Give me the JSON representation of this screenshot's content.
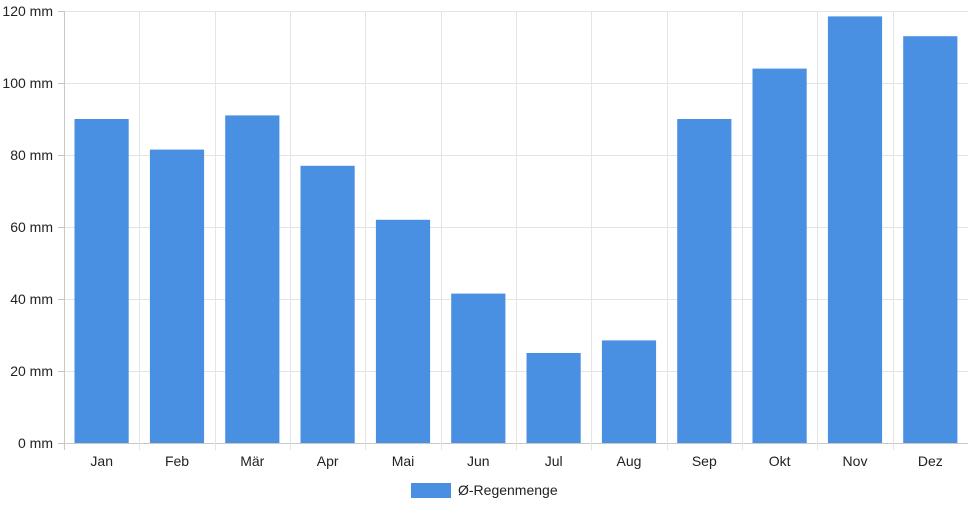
{
  "chart_data": {
    "type": "bar",
    "categories": [
      "Jan",
      "Feb",
      "Mär",
      "Apr",
      "Mai",
      "Jun",
      "Jul",
      "Aug",
      "Sep",
      "Okt",
      "Nov",
      "Dez"
    ],
    "series": [
      {
        "name": "Ø-Regenmenge",
        "color": "#4a90e2",
        "values": [
          90,
          81.5,
          91,
          77,
          62,
          41.5,
          25,
          28.5,
          90,
          104,
          118.5,
          113
        ]
      }
    ],
    "y_unit": "mm",
    "ylim": [
      0,
      120
    ],
    "yticks": [
      0,
      20,
      40,
      60,
      80,
      100,
      120
    ],
    "ytick_labels": [
      "0 mm",
      "20 mm",
      "40 mm",
      "60 mm",
      "80 mm",
      "100 mm",
      "120 mm"
    ],
    "grid": true,
    "legend": {
      "position": "bottom",
      "label": "Ø-Regenmenge",
      "color": "#4a90e2"
    }
  }
}
